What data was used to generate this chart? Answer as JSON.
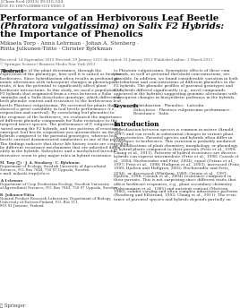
{
  "journal_line1": "J Chem Ecol (2013) 39:516–524",
  "journal_line2": "DOI 10.1007/s10886-013-0266-3",
  "title_bold": "Performance of an Herbivorous Leaf Beetle",
  "title_italic": "(Phratora vulgatissima) on Salix F2 Hybrids:",
  "title_normal": "the Importance of Phenolics",
  "authors_line1": "Mikaela Torp · Anna Lehrman · Johan A. Stenberg ·",
  "authors_line2": "Riitta Julkunen-Tiitto · Christer Björkman",
  "received": "Received: 14 September 2012 /Revised: 30 January 2013 /Accepted: 31 January 2013 /Published online: 1 March 2013",
  "copyright": "© Springer Science+Business Media New York 2013",
  "abstract_label": "Abstract",
  "abstract_col1_lines": [
    "The genotype of the plant determines, through the",
    "expression of the phenotype, how well it is suited as food for",
    "herbivores. Since hybridization often results in profound ge-",
    "nomic alterations with subsequent changes in phenotypic",
    "traits, it has the potential to significantly affect plant-",
    "herbivore interactions. In this study, we used a population of",
    "F2 hybrids that originated from a cross between a Salix",
    "viminalis and a Salix dasyclados genotype, which differed in",
    "both phenolic content and resistance to the herbivorous leaf",
    "beetle Phratora vulgatissima. We screened for plants that",
    "showed a great variability in leaf beetle performance (i.e.,",
    "oviposition and survival). By correlating leaf phenolics to",
    "the response of the herbivores, we evaluated the importance",
    "of different phenolic compounds for Salix resistance to the",
    "targeted insect species. The performance of P. vulgatissima",
    "varied among the F2 hybrids, and two patterns of resistance",
    "emerged: leaf beetle oviposition was intermediate on the F2",
    "hybrids compared to the parental genotypes, whereas leaf",
    "beetle survival demonstrated similarities to one of the parents.",
    "The findings indicate that these life history traits are controlled",
    "by different resistance mechanisms that are inherited differ-",
    "ently in the hybrids. Salicylates and a methylated luteolin",
    "derivative seem to play major roles in hybrid resistance"
  ],
  "abstract_col2_lines": [
    "to Phratora vulgatissima. Synergistic effects of these com-",
    "pounds, as well as potential threshold concentrations, are",
    "plausible. In addition, we found considerable variation in both",
    "distributions and concentrations of different phenolics in the",
    "F2 hybrids. The phenolic profiles of parental genotypes and",
    "F2 hybrids differed significantly (e.g., novel compounds",
    "appeared in the hybrids) suggesting genomic alterations with",
    "subsequent changes in biosynthetic pathways in the hybrids."
  ],
  "keywords_label": "Keywords",
  "keywords_lines": [
    "Hybridization · Phenolics · Luteolin ·",
    "Salicylates · Phratora vulgatissima performance ·",
    "Resistance · Salix"
  ],
  "intro_label": "Introduction",
  "intro_col2_lines": [
    "Hybridization between species is common in nature (Arnold,",
    "1997) and can result in substantial changes in various plant",
    "characteristics. Parental species and hybrids often differ in",
    "resistance to herbivores. This variation is probably mediated",
    "by modifications of plant chemistry, morphology, or phenology",
    "in hybrid plants compared to their parents (Fritz et al., 1999;",
    "Chang et al., 2011). Patterns of hybrid resistance are diverse:",
    "hybrids can express intermediate (Fritz et al., 1998; Casusk et",
    "al., 2004; Hochwender and Fritz, 2004), equal (Orians et al.,",
    "1997; Fritz et al., 1998; Hallgren et al., 2003), increased (Fritz,",
    "1999; Hjalten and Hallgren, 2002; Hochwender and Fritz,",
    "2004), or decreased (Whitham, 1989; Orians et al., 1997;",
    "Hjalten, 1998; Casusk et al., 2004) resistance compared to",
    "their parents. This is not surprising since different traits that",
    "affect herbivore responses, e.g., plant secondary chemistry",
    "(Tahvanainen et al., 1985) and nutrient content (Mattson,",
    "1980), exhibit varying and often complex inheritance patterns",
    "(Rossberg and Ellstrand, 1993; Chang et al., 2011). The resis-",
    "tance of parental species and hybrids depends partially on"
  ],
  "footnote_lines": [
    [
      "M. Torp (✉) · J. A. Stenberg · C. Björkman",
      "bold"
    ],
    [
      "Department of Ecology, Swedish University of Agricultural",
      "normal"
    ],
    [
      "Sciences, P.O. Box 7044, 750 07 Uppsala, Sweden",
      "normal"
    ],
    [
      "e-mail: mikaela.torp@slu.se",
      "normal"
    ],
    [
      "",
      "normal"
    ],
    [
      "A. Lehrman",
      "bold"
    ],
    [
      "Department of Crop Production Ecology, Swedish University",
      "normal"
    ],
    [
      "of Agricultural Sciences, P.O. Box 7043, 750 07 Uppsala, Sweden",
      "normal"
    ],
    [
      "",
      "normal"
    ],
    [
      "R. Julkunen-Tiitto",
      "bold"
    ],
    [
      "Natural Product Research Laboratory, Department of Biology,",
      "normal"
    ],
    [
      "University of Eastern Finland, P.O. Box 111,",
      "normal"
    ],
    [
      "801 01 Joensuu, Finland",
      "normal"
    ]
  ],
  "springer_logo": "Ⓢ Springer",
  "bg_color": "#ffffff",
  "text_color": "#000000",
  "gray_color": "#555555"
}
